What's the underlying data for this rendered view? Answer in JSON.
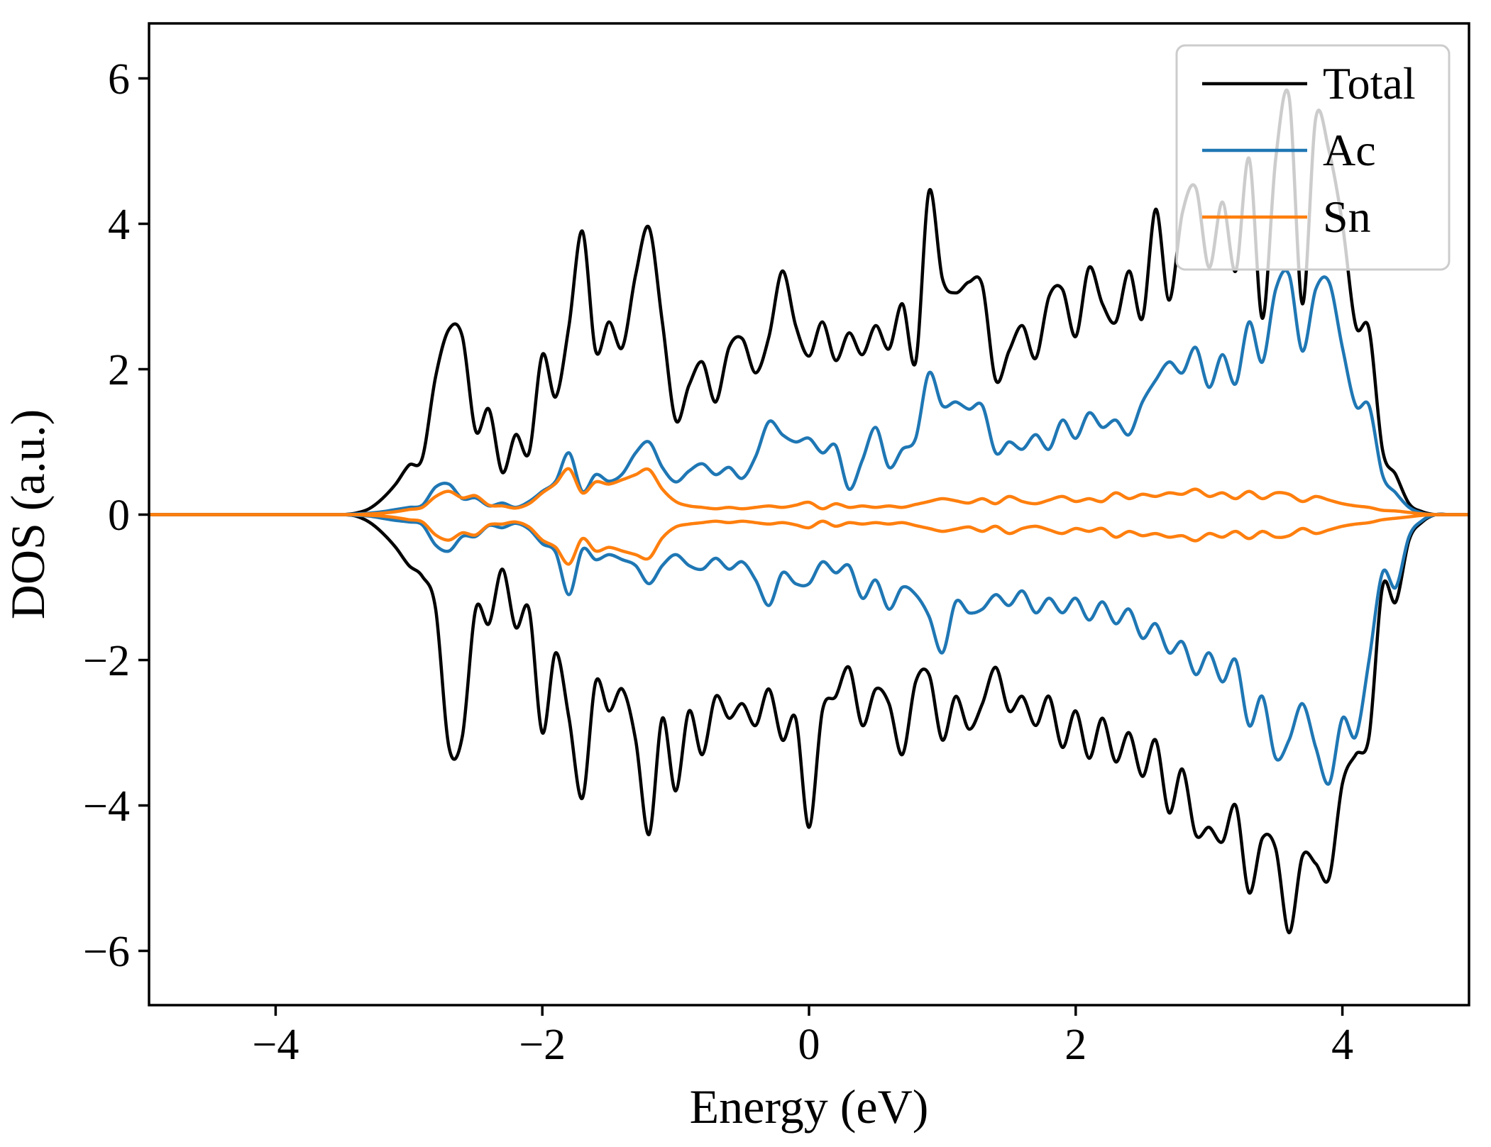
{
  "figure": {
    "xlabel": "Energy (eV)",
    "ylabel": "DOS (a.u.)",
    "background_color": "#ffffff",
    "axis_color": "#000000",
    "legend_border_color": "#cccccc"
  },
  "legend": {
    "position": "upper right",
    "entries": [
      {
        "label": "Total",
        "color": "#000000"
      },
      {
        "label": "Ac",
        "color": "#1f77b4"
      },
      {
        "label": "Sn",
        "color": "#ff7f0e"
      }
    ]
  },
  "chart_data": {
    "type": "line",
    "title": "",
    "xlabel": "Energy (eV)",
    "ylabel": "DOS (a.u.)",
    "xlim": [
      -5,
      5
    ],
    "ylim": [
      -6.75,
      6.75
    ],
    "x_ticks": [
      -4,
      -2,
      0,
      2,
      4
    ],
    "y_ticks": [
      -6,
      -4,
      -2,
      0,
      2,
      4,
      6
    ],
    "grid": false,
    "legend_position": "upper right",
    "x_start": -5.0,
    "x_step": 0.1,
    "series": [
      {
        "name": "Total spin-up",
        "color": "#000000",
        "values": [
          0,
          0,
          0,
          0,
          0,
          0,
          0,
          0,
          0,
          0,
          0,
          0,
          0,
          0,
          0,
          0,
          0.02,
          0.08,
          0.22,
          0.42,
          0.68,
          0.78,
          1.9,
          2.55,
          2.45,
          1.15,
          1.45,
          0.58,
          1.1,
          0.85,
          2.2,
          1.62,
          2.6,
          3.9,
          2.25,
          2.65,
          2.3,
          3.3,
          3.95,
          2.65,
          1.3,
          1.78,
          2.1,
          1.55,
          2.3,
          2.42,
          1.95,
          2.45,
          3.35,
          2.6,
          2.18,
          2.65,
          2.12,
          2.5,
          2.2,
          2.6,
          2.28,
          2.9,
          2.1,
          4.45,
          3.25,
          3.05,
          3.2,
          3.15,
          1.85,
          2.25,
          2.6,
          2.15,
          3.0,
          3.1,
          2.45,
          3.4,
          2.9,
          2.65,
          3.35,
          2.7,
          4.2,
          2.95,
          4.15,
          4.5,
          3.4,
          4.3,
          3.35,
          4.9,
          2.7,
          4.9,
          5.75,
          2.9,
          5.45,
          5.0,
          4.0,
          2.6,
          2.55,
          0.9,
          0.55,
          0.15,
          0.04,
          0,
          0,
          0,
          0
        ]
      },
      {
        "name": "Total spin-down",
        "color": "#000000",
        "values": [
          0,
          0,
          0,
          0,
          0,
          0,
          0,
          0,
          0,
          0,
          0,
          0,
          0,
          0,
          0,
          0,
          -0.02,
          -0.1,
          -0.25,
          -0.45,
          -0.7,
          -0.85,
          -1.3,
          -3.2,
          -3.05,
          -1.3,
          -1.5,
          -0.75,
          -1.55,
          -1.3,
          -3.0,
          -1.9,
          -2.8,
          -3.9,
          -2.3,
          -2.7,
          -2.4,
          -3.1,
          -4.4,
          -2.8,
          -3.8,
          -2.7,
          -3.3,
          -2.5,
          -2.8,
          -2.6,
          -2.9,
          -2.4,
          -3.1,
          -2.8,
          -4.3,
          -2.7,
          -2.5,
          -2.1,
          -2.9,
          -2.4,
          -2.6,
          -3.3,
          -2.3,
          -2.2,
          -3.1,
          -2.5,
          -2.95,
          -2.6,
          -2.1,
          -2.7,
          -2.5,
          -2.9,
          -2.5,
          -3.2,
          -2.7,
          -3.35,
          -2.8,
          -3.4,
          -3.0,
          -3.6,
          -3.1,
          -4.1,
          -3.5,
          -4.4,
          -4.3,
          -4.5,
          -4.0,
          -5.2,
          -4.45,
          -4.6,
          -5.75,
          -4.7,
          -4.8,
          -5.0,
          -3.7,
          -3.3,
          -3.05,
          -1.0,
          -1.2,
          -0.35,
          -0.1,
          0,
          0,
          0,
          0
        ]
      },
      {
        "name": "Ac spin-up",
        "color": "#1f77b4",
        "values": [
          0,
          0,
          0,
          0,
          0,
          0,
          0,
          0,
          0,
          0,
          0,
          0,
          0,
          0,
          0,
          0,
          0.01,
          0.02,
          0.04,
          0.07,
          0.1,
          0.13,
          0.38,
          0.42,
          0.22,
          0.23,
          0.12,
          0.16,
          0.1,
          0.18,
          0.32,
          0.46,
          0.85,
          0.32,
          0.55,
          0.46,
          0.56,
          0.85,
          1.0,
          0.65,
          0.45,
          0.6,
          0.7,
          0.55,
          0.65,
          0.5,
          0.8,
          1.28,
          1.1,
          1.0,
          1.05,
          0.85,
          0.95,
          0.35,
          0.75,
          1.2,
          0.65,
          0.9,
          1.05,
          1.95,
          1.5,
          1.55,
          1.45,
          1.5,
          0.85,
          1.0,
          0.9,
          1.1,
          0.9,
          1.3,
          1.05,
          1.4,
          1.2,
          1.3,
          1.1,
          1.55,
          1.85,
          2.1,
          1.95,
          2.3,
          1.75,
          2.2,
          1.8,
          2.65,
          2.1,
          3.1,
          3.3,
          2.25,
          3.1,
          3.2,
          2.3,
          1.5,
          1.5,
          0.55,
          0.3,
          0.1,
          0.02,
          0,
          0,
          0,
          0
        ]
      },
      {
        "name": "Ac spin-down",
        "color": "#1f77b4",
        "values": [
          0,
          0,
          0,
          0,
          0,
          0,
          0,
          0,
          0,
          0,
          0,
          0,
          0,
          0,
          0,
          0,
          -0.01,
          -0.02,
          -0.05,
          -0.08,
          -0.1,
          -0.14,
          -0.42,
          -0.5,
          -0.3,
          -0.3,
          -0.15,
          -0.18,
          -0.12,
          -0.2,
          -0.4,
          -0.52,
          -1.1,
          -0.48,
          -0.62,
          -0.55,
          -0.62,
          -0.7,
          -0.95,
          -0.7,
          -0.55,
          -0.7,
          -0.75,
          -0.6,
          -0.75,
          -0.65,
          -0.9,
          -1.25,
          -0.8,
          -0.95,
          -0.95,
          -0.65,
          -0.8,
          -0.7,
          -1.15,
          -0.9,
          -1.3,
          -1.0,
          -1.1,
          -1.4,
          -1.9,
          -1.2,
          -1.35,
          -1.3,
          -1.1,
          -1.25,
          -1.05,
          -1.35,
          -1.15,
          -1.35,
          -1.15,
          -1.45,
          -1.2,
          -1.5,
          -1.3,
          -1.7,
          -1.5,
          -1.9,
          -1.75,
          -2.2,
          -1.9,
          -2.3,
          -2.0,
          -2.9,
          -2.5,
          -3.35,
          -3.1,
          -2.6,
          -3.2,
          -3.7,
          -2.8,
          -3.05,
          -2.0,
          -0.8,
          -1.0,
          -0.3,
          -0.08,
          0,
          0,
          0,
          0
        ]
      },
      {
        "name": "Sn spin-up",
        "color": "#ff7f0e",
        "values": [
          0,
          0,
          0,
          0,
          0,
          0,
          0,
          0,
          0,
          0,
          0,
          0,
          0,
          0,
          0,
          0,
          0,
          0.01,
          0.02,
          0.04,
          0.07,
          0.1,
          0.25,
          0.32,
          0.23,
          0.26,
          0.13,
          0.12,
          0.09,
          0.15,
          0.3,
          0.43,
          0.63,
          0.3,
          0.45,
          0.42,
          0.48,
          0.55,
          0.62,
          0.35,
          0.18,
          0.12,
          0.1,
          0.08,
          0.1,
          0.08,
          0.1,
          0.12,
          0.1,
          0.13,
          0.17,
          0.08,
          0.15,
          0.1,
          0.12,
          0.1,
          0.12,
          0.1,
          0.14,
          0.18,
          0.22,
          0.19,
          0.16,
          0.22,
          0.15,
          0.25,
          0.18,
          0.15,
          0.2,
          0.25,
          0.18,
          0.22,
          0.18,
          0.3,
          0.22,
          0.28,
          0.25,
          0.3,
          0.28,
          0.35,
          0.25,
          0.3,
          0.22,
          0.32,
          0.22,
          0.3,
          0.28,
          0.18,
          0.25,
          0.2,
          0.15,
          0.12,
          0.1,
          0.06,
          0.05,
          0.03,
          0.01,
          0,
          0,
          0,
          0
        ]
      },
      {
        "name": "Sn spin-down",
        "color": "#ff7f0e",
        "values": [
          0,
          0,
          0,
          0,
          0,
          0,
          0,
          0,
          0,
          0,
          0,
          0,
          0,
          0,
          0,
          0,
          0,
          -0.01,
          -0.02,
          -0.04,
          -0.07,
          -0.1,
          -0.28,
          -0.35,
          -0.25,
          -0.28,
          -0.14,
          -0.13,
          -0.1,
          -0.17,
          -0.35,
          -0.45,
          -0.68,
          -0.33,
          -0.5,
          -0.45,
          -0.5,
          -0.55,
          -0.6,
          -0.32,
          -0.17,
          -0.13,
          -0.11,
          -0.09,
          -0.11,
          -0.09,
          -0.11,
          -0.13,
          -0.11,
          -0.14,
          -0.18,
          -0.09,
          -0.16,
          -0.11,
          -0.13,
          -0.11,
          -0.13,
          -0.11,
          -0.15,
          -0.19,
          -0.23,
          -0.2,
          -0.17,
          -0.23,
          -0.16,
          -0.26,
          -0.19,
          -0.16,
          -0.21,
          -0.26,
          -0.19,
          -0.23,
          -0.19,
          -0.31,
          -0.23,
          -0.29,
          -0.26,
          -0.31,
          -0.29,
          -0.36,
          -0.26,
          -0.31,
          -0.23,
          -0.33,
          -0.23,
          -0.31,
          -0.29,
          -0.19,
          -0.26,
          -0.21,
          -0.16,
          -0.13,
          -0.11,
          -0.07,
          -0.05,
          -0.03,
          -0.01,
          0,
          0,
          0,
          0
        ]
      }
    ]
  }
}
